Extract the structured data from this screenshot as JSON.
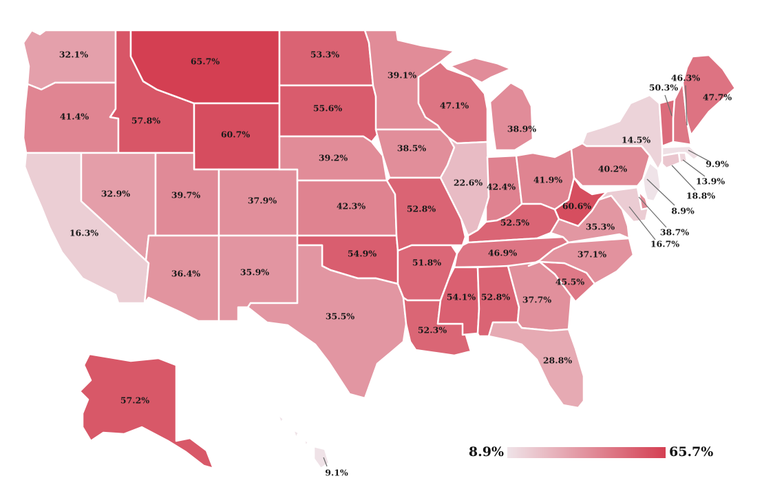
{
  "colors": {
    "low": "#efe3e8",
    "high": "#d43f52",
    "border": "#ffffff"
  },
  "legend": {
    "min_label": "8.9%",
    "max_label": "65.7%",
    "min": 8.9,
    "max": 65.7
  },
  "states": {
    "WA": {
      "label": "32.1%",
      "value": 32.1
    },
    "OR": {
      "label": "41.4%",
      "value": 41.4
    },
    "CA": {
      "label": "16.3%",
      "value": 16.3
    },
    "ID": {
      "label": "57.8%",
      "value": 57.8
    },
    "NV": {
      "label": "32.9%",
      "value": 32.9
    },
    "MT": {
      "label": "65.7%",
      "value": 65.7
    },
    "WY": {
      "label": "60.7%",
      "value": 60.7
    },
    "UT": {
      "label": "39.7%",
      "value": 39.7
    },
    "AZ": {
      "label": "36.4%",
      "value": 36.4
    },
    "CO": {
      "label": "37.9%",
      "value": 37.9
    },
    "NM": {
      "label": "35.9%",
      "value": 35.9
    },
    "ND": {
      "label": "53.3%",
      "value": 53.3
    },
    "SD": {
      "label": "55.6%",
      "value": 55.6
    },
    "NE": {
      "label": "39.2%",
      "value": 39.2
    },
    "KS": {
      "label": "42.3%",
      "value": 42.3
    },
    "OK": {
      "label": "54.9%",
      "value": 54.9
    },
    "TX": {
      "label": "35.5%",
      "value": 35.5
    },
    "MN": {
      "label": "39.1%",
      "value": 39.1
    },
    "IA": {
      "label": "38.5%",
      "value": 38.5
    },
    "MO": {
      "label": "52.8%",
      "value": 52.8
    },
    "AR": {
      "label": "51.8%",
      "value": 51.8
    },
    "LA": {
      "label": "52.3%",
      "value": 52.3
    },
    "WI": {
      "label": "47.1%",
      "value": 47.1
    },
    "IL": {
      "label": "22.6%",
      "value": 22.6
    },
    "MI": {
      "label": "38.9%",
      "value": 38.9
    },
    "IN": {
      "label": "42.4%",
      "value": 42.4
    },
    "OH": {
      "label": "41.9%",
      "value": 41.9
    },
    "KY": {
      "label": "52.5%",
      "value": 52.5
    },
    "TN": {
      "label": "46.9%",
      "value": 46.9
    },
    "MS": {
      "label": "54.1%",
      "value": 54.1
    },
    "AL": {
      "label": "52.8%",
      "value": 52.8
    },
    "GA": {
      "label": "37.7%",
      "value": 37.7
    },
    "FL": {
      "label": "28.8%",
      "value": 28.8
    },
    "SC": {
      "label": "45.5%",
      "value": 45.5
    },
    "NC": {
      "label": "37.1%",
      "value": 37.1
    },
    "VA": {
      "label": "35.3%",
      "value": 35.3
    },
    "WV": {
      "label": "60.6%",
      "value": 60.6
    },
    "PA": {
      "label": "40.2%",
      "value": 40.2
    },
    "NY": {
      "label": "14.5%",
      "value": 14.5
    },
    "VT": {
      "label": "50.3%",
      "value": 50.3
    },
    "NH": {
      "label": "46.3%",
      "value": 46.3
    },
    "ME": {
      "label": "47.7%",
      "value": 47.7
    },
    "MA": {
      "label": "9.9%",
      "value": 9.9
    },
    "RI": {
      "label": "13.9%",
      "value": 13.9
    },
    "CT": {
      "label": "18.8%",
      "value": 18.8
    },
    "NJ": {
      "label": "8.9%",
      "value": 8.9
    },
    "DE": {
      "label": "38.7%",
      "value": 38.7
    },
    "MD": {
      "label": "16.7%",
      "value": 16.7
    },
    "AK": {
      "label": "57.2%",
      "value": 57.2
    },
    "HI": {
      "label": "9.1%",
      "value": 9.1
    }
  }
}
